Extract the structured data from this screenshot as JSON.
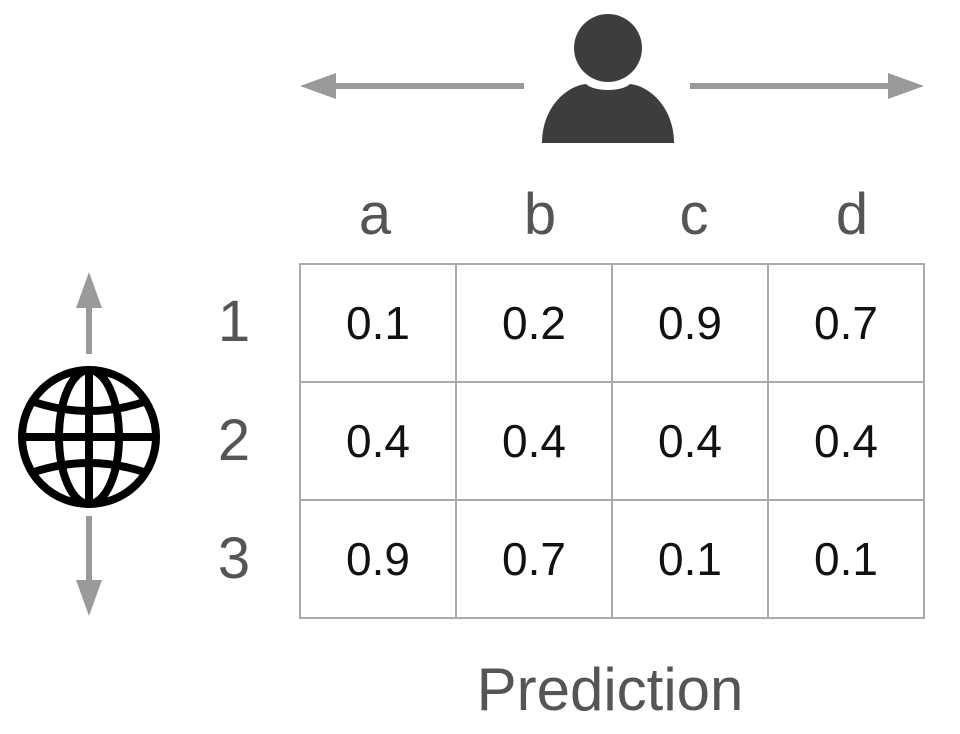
{
  "columns": [
    "a",
    "b",
    "c",
    "d"
  ],
  "rows": [
    "1",
    "2",
    "3"
  ],
  "cells": [
    [
      "0.1",
      "0.2",
      "0.9",
      "0.7"
    ],
    [
      "0.4",
      "0.4",
      "0.4",
      "0.4"
    ],
    [
      "0.9",
      "0.7",
      "0.1",
      "0.1"
    ]
  ],
  "xlabel": "Prediction",
  "icons": {
    "top": "user-icon",
    "left": "globe-icon"
  },
  "colors": {
    "arrow": "#9a9a9a",
    "header_text": "#555555",
    "grid_border": "#aaaaaa",
    "user_icon": "#3d3d3d",
    "globe_icon": "#000000"
  }
}
